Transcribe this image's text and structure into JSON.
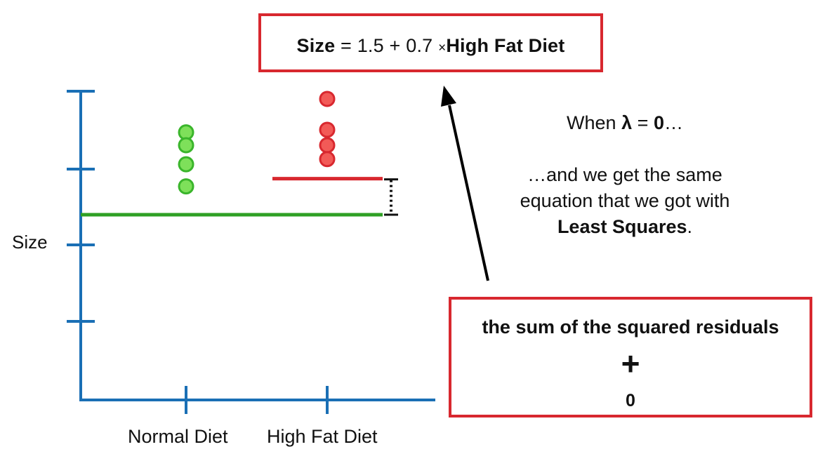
{
  "equation": {
    "lhs": "Size",
    "equals": "=",
    "expr": "1.5 + 0.7",
    "times": "×",
    "rhs": "High Fat Diet"
  },
  "note": {
    "when_prefix": "When",
    "lambda": "λ",
    "equals": "=",
    "zero": "0",
    "ellipsis": "…",
    "line2": "…and we get the same",
    "line3": "equation that we got with",
    "line4_bold": "Least Squares",
    "line4_end": "."
  },
  "penalty_box": {
    "title": "the sum of the squared residuals",
    "plus": "+",
    "value": "0"
  },
  "chart_data": {
    "type": "scatter",
    "ylabel": "Size",
    "categories": [
      "Normal Diet",
      "High Fat Diet"
    ],
    "series": [
      {
        "category": "Normal Diet",
        "color": "#3ab52b",
        "fill": "#7ee05a",
        "values": [
          3.1,
          2.85,
          2.48,
          2.05
        ]
      },
      {
        "category": "High Fat Diet",
        "color": "#d8282f",
        "fill": "#f25a57",
        "values": [
          3.75,
          3.15,
          2.85,
          2.58
        ]
      }
    ],
    "fit_lines": [
      {
        "category": "Normal Diet",
        "value": 1.5,
        "color": "#2fa024"
      },
      {
        "category": "High Fat Diet",
        "value": 2.2,
        "color": "#d8282f"
      }
    ],
    "ylim": [
      -2.1,
      3.9
    ],
    "ytick_count": 4,
    "axis_color": "#1a6fb5",
    "residual_marker": "dotted"
  }
}
